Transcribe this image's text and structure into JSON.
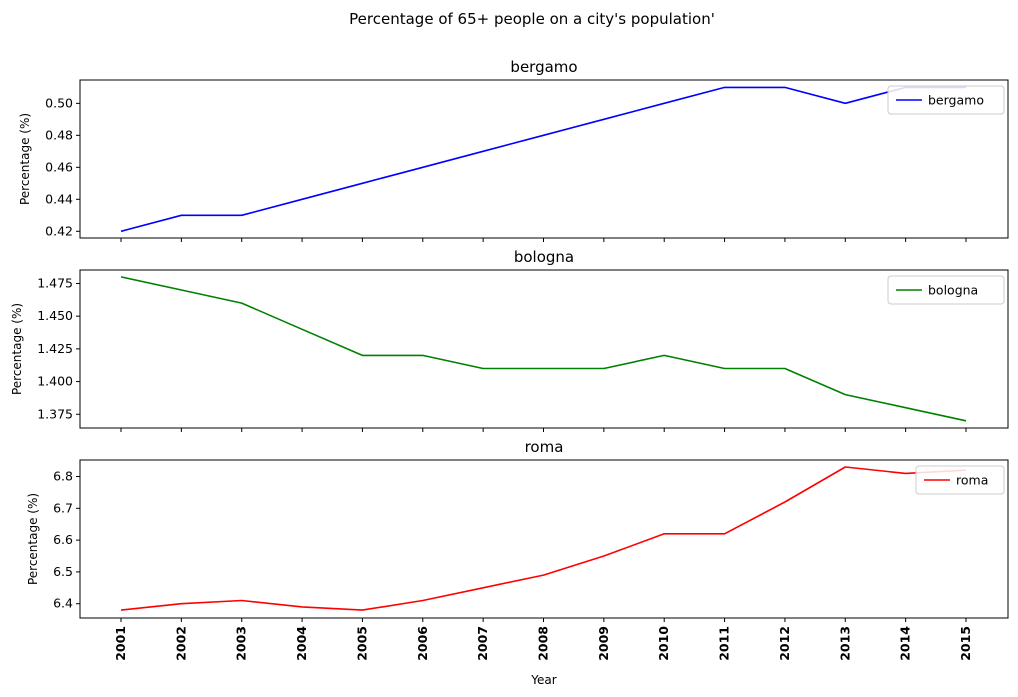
{
  "figure_title": "Percentage of 65+ people on a city's population'",
  "xlabel": "Year",
  "chart_data": [
    {
      "type": "line",
      "title": "bergamo",
      "ylabel": "Percentage (%)",
      "xlabel": "",
      "legend_placement": "top-right",
      "grid": false,
      "categories": [
        "2001",
        "2002",
        "2003",
        "2004",
        "2005",
        "2006",
        "2007",
        "2008",
        "2009",
        "2010",
        "2011",
        "2012",
        "2013",
        "2014",
        "2015"
      ],
      "ylim": [
        0.4158,
        0.5146
      ],
      "yticks": [
        0.42,
        0.44,
        0.46,
        0.48,
        0.5
      ],
      "ytick_labels": [
        "0.42",
        "0.44",
        "0.46",
        "0.48",
        "0.50"
      ],
      "series": [
        {
          "name": "bergamo",
          "color": "#0000ff",
          "values": [
            0.42,
            0.43,
            0.43,
            0.44,
            0.45,
            0.46,
            0.47,
            0.48,
            0.49,
            0.5,
            0.51,
            0.51,
            0.5,
            0.51,
            0.51
          ]
        }
      ]
    },
    {
      "type": "line",
      "title": "bologna",
      "ylabel": "Percentage (%)",
      "xlabel": "",
      "legend_placement": "top-right",
      "grid": false,
      "categories": [
        "2001",
        "2002",
        "2003",
        "2004",
        "2005",
        "2006",
        "2007",
        "2008",
        "2009",
        "2010",
        "2011",
        "2012",
        "2013",
        "2014",
        "2015"
      ],
      "ylim": [
        1.3645,
        1.4853
      ],
      "yticks": [
        1.375,
        1.4,
        1.425,
        1.45,
        1.475
      ],
      "ytick_labels": [
        "1.375",
        "1.400",
        "1.425",
        "1.450",
        "1.475"
      ],
      "series": [
        {
          "name": "bologna",
          "color": "#008000",
          "values": [
            1.48,
            1.47,
            1.46,
            1.44,
            1.42,
            1.42,
            1.41,
            1.41,
            1.41,
            1.42,
            1.41,
            1.41,
            1.39,
            1.38,
            1.37
          ]
        }
      ]
    },
    {
      "type": "line",
      "title": "roma",
      "ylabel": "Percentage (%)",
      "xlabel": "Year",
      "legend_placement": "top-right",
      "grid": false,
      "categories": [
        "2001",
        "2002",
        "2003",
        "2004",
        "2005",
        "2006",
        "2007",
        "2008",
        "2009",
        "2010",
        "2011",
        "2012",
        "2013",
        "2014",
        "2015"
      ],
      "ylim": [
        6.355,
        6.852
      ],
      "yticks": [
        6.4,
        6.5,
        6.6,
        6.7,
        6.8
      ],
      "ytick_labels": [
        "6.4",
        "6.5",
        "6.6",
        "6.7",
        "6.8"
      ],
      "series": [
        {
          "name": "roma",
          "color": "#ff0000",
          "values": [
            6.38,
            6.4,
            6.41,
            6.39,
            6.38,
            6.41,
            6.45,
            6.49,
            6.55,
            6.62,
            6.62,
            6.72,
            6.83,
            6.81,
            6.82
          ]
        }
      ]
    }
  ]
}
